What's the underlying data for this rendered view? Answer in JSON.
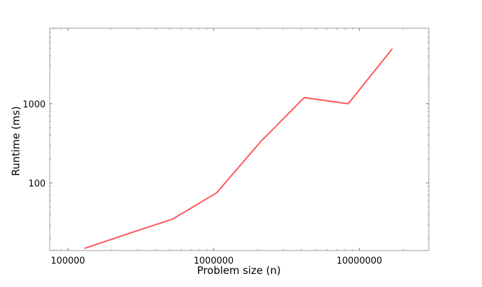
{
  "chart_data": {
    "type": "line",
    "title": "",
    "xlabel": "Problem size (n)",
    "ylabel": "Runtime (ms)",
    "xscale": "log",
    "yscale": "log",
    "xlim": [
      75000,
      30000000
    ],
    "ylim": [
      14,
      9000
    ],
    "grid": false,
    "legend": "none",
    "x_ticks": [
      {
        "value": 100000,
        "label": "100000"
      },
      {
        "value": 1000000,
        "label": "1000000"
      },
      {
        "value": 10000000,
        "label": "10000000"
      }
    ],
    "y_ticks": [
      {
        "value": 100,
        "label": "100"
      },
      {
        "value": 1000,
        "label": "1000"
      }
    ],
    "series": [
      {
        "color": "#ff5555",
        "x": [
          131072,
          262144,
          524288,
          1048576,
          2097152,
          4194304,
          8388608,
          16777216
        ],
        "y": [
          15,
          23,
          35,
          75,
          330,
          1200,
          1000,
          4900
        ]
      }
    ]
  }
}
